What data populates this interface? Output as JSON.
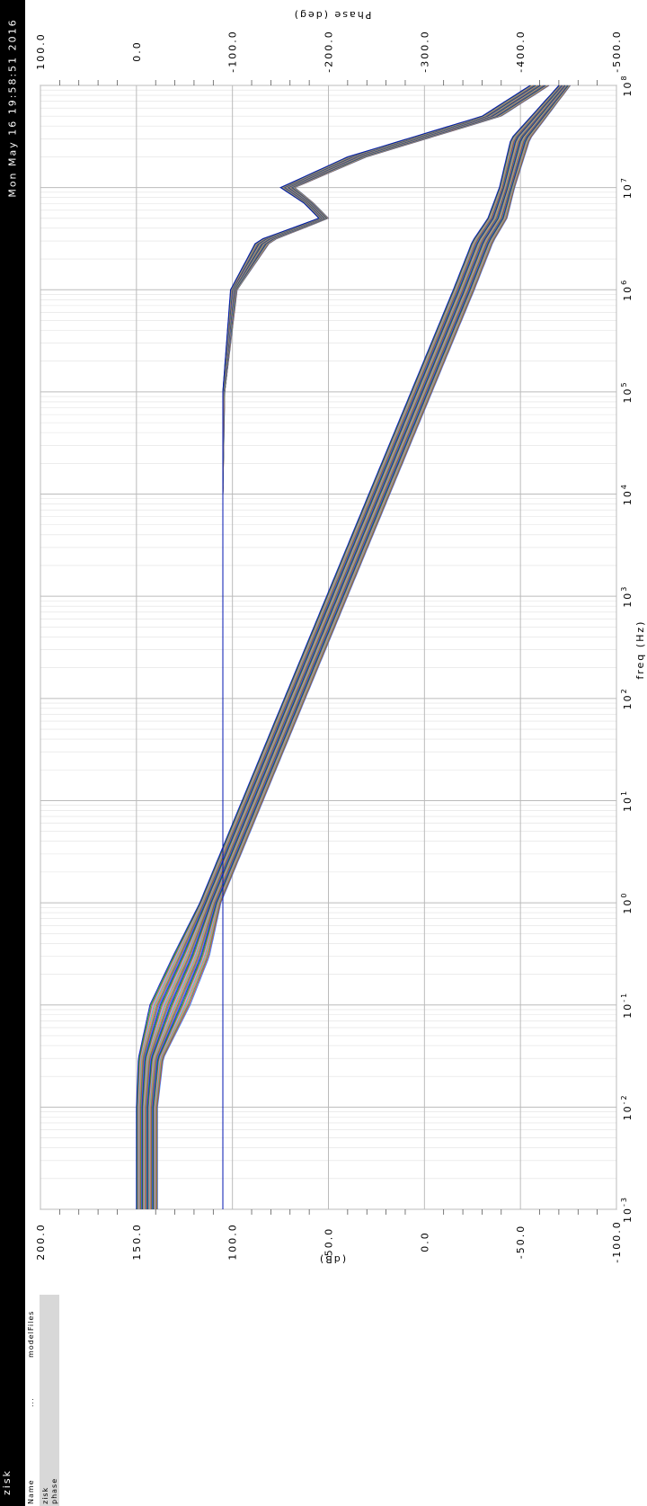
{
  "window": {
    "datetime": "Mon May 16 19:58:51 2016",
    "app_title": "zisk"
  },
  "legend": {
    "headers": [
      "Name",
      "...",
      "modelFiles"
    ],
    "rows": [
      "zisk",
      "phase"
    ]
  },
  "colors": {
    "title_bar": "#000000",
    "grid_major": "#bbbbbb",
    "grid_minor": "#e0e0e0",
    "legend_band": "#d8d8d8",
    "series_palette": [
      "#1f77ff",
      "#d62728",
      "#2ca02c",
      "#9467bd",
      "#ff7f0e",
      "#17becf",
      "#e377c2",
      "#8c564b",
      "#00a000",
      "#0000cc"
    ]
  },
  "chart_data": {
    "type": "line",
    "xlabel": "freq (Hz)",
    "ylabel": "(dB)",
    "y2label": "Phase (deg)",
    "xscale": "log",
    "xlim": [
      0.001,
      100000000
    ],
    "xticks": [
      {
        "base": "10",
        "exp": "-3"
      },
      {
        "base": "10",
        "exp": "-2"
      },
      {
        "base": "10",
        "exp": "-1"
      },
      {
        "base": "10",
        "exp": "0"
      },
      {
        "base": "10",
        "exp": "1"
      },
      {
        "base": "10",
        "exp": "2"
      },
      {
        "base": "10",
        "exp": "3"
      },
      {
        "base": "10",
        "exp": "4"
      },
      {
        "base": "10",
        "exp": "5"
      },
      {
        "base": "10",
        "exp": "6"
      },
      {
        "base": "10",
        "exp": "7"
      },
      {
        "base": "10",
        "exp": "8"
      }
    ],
    "ylim": [
      -100,
      200
    ],
    "yticks": [
      "200.0",
      "150.0",
      "100.0",
      "50.0",
      "0.0",
      "-50.0",
      "-100.0"
    ],
    "y2lim": [
      -500,
      100
    ],
    "y2ticks": [
      "100.0",
      "0.0",
      "-100.0",
      "-200.0",
      "-300.0",
      "-400.0",
      "-500.0"
    ],
    "grid": true,
    "orientation": "rotated 90 degrees clockwise",
    "series_groups": [
      {
        "quantity": "magnitude",
        "axis": "dB",
        "count": 40,
        "x": [
          0.001,
          0.01,
          0.03,
          0.1,
          0.3,
          1,
          10,
          100,
          1000,
          10000,
          100000,
          1000000,
          3000000,
          5000000,
          10000000,
          30000000,
          100000000
        ],
        "y_low": [
          139,
          139,
          136,
          122,
          112,
          106,
          84,
          62,
          40,
          18,
          -4,
          -26,
          -36,
          -43,
          -47,
          -55,
          -76
        ],
        "y_high": [
          150,
          150,
          149,
          143,
          131,
          117,
          95,
          73,
          51,
          29,
          7,
          -15,
          -25,
          -33,
          -39,
          -45,
          -70
        ]
      },
      {
        "quantity": "phase",
        "axis": "deg",
        "count": 40,
        "x": [
          0.001,
          10,
          10000,
          100000,
          1000000,
          3000000,
          5000000,
          7000000,
          10000000,
          20000000,
          50000000,
          100000000
        ],
        "y_low": [
          -90,
          -90,
          -90,
          -92,
          -105,
          -140,
          -200,
          -185,
          -165,
          -240,
          -380,
          -430
        ],
        "y_high": [
          -90,
          -90,
          -90,
          -90,
          -98,
          -125,
          -190,
          -175,
          -150,
          -220,
          -360,
          -410
        ]
      }
    ]
  }
}
